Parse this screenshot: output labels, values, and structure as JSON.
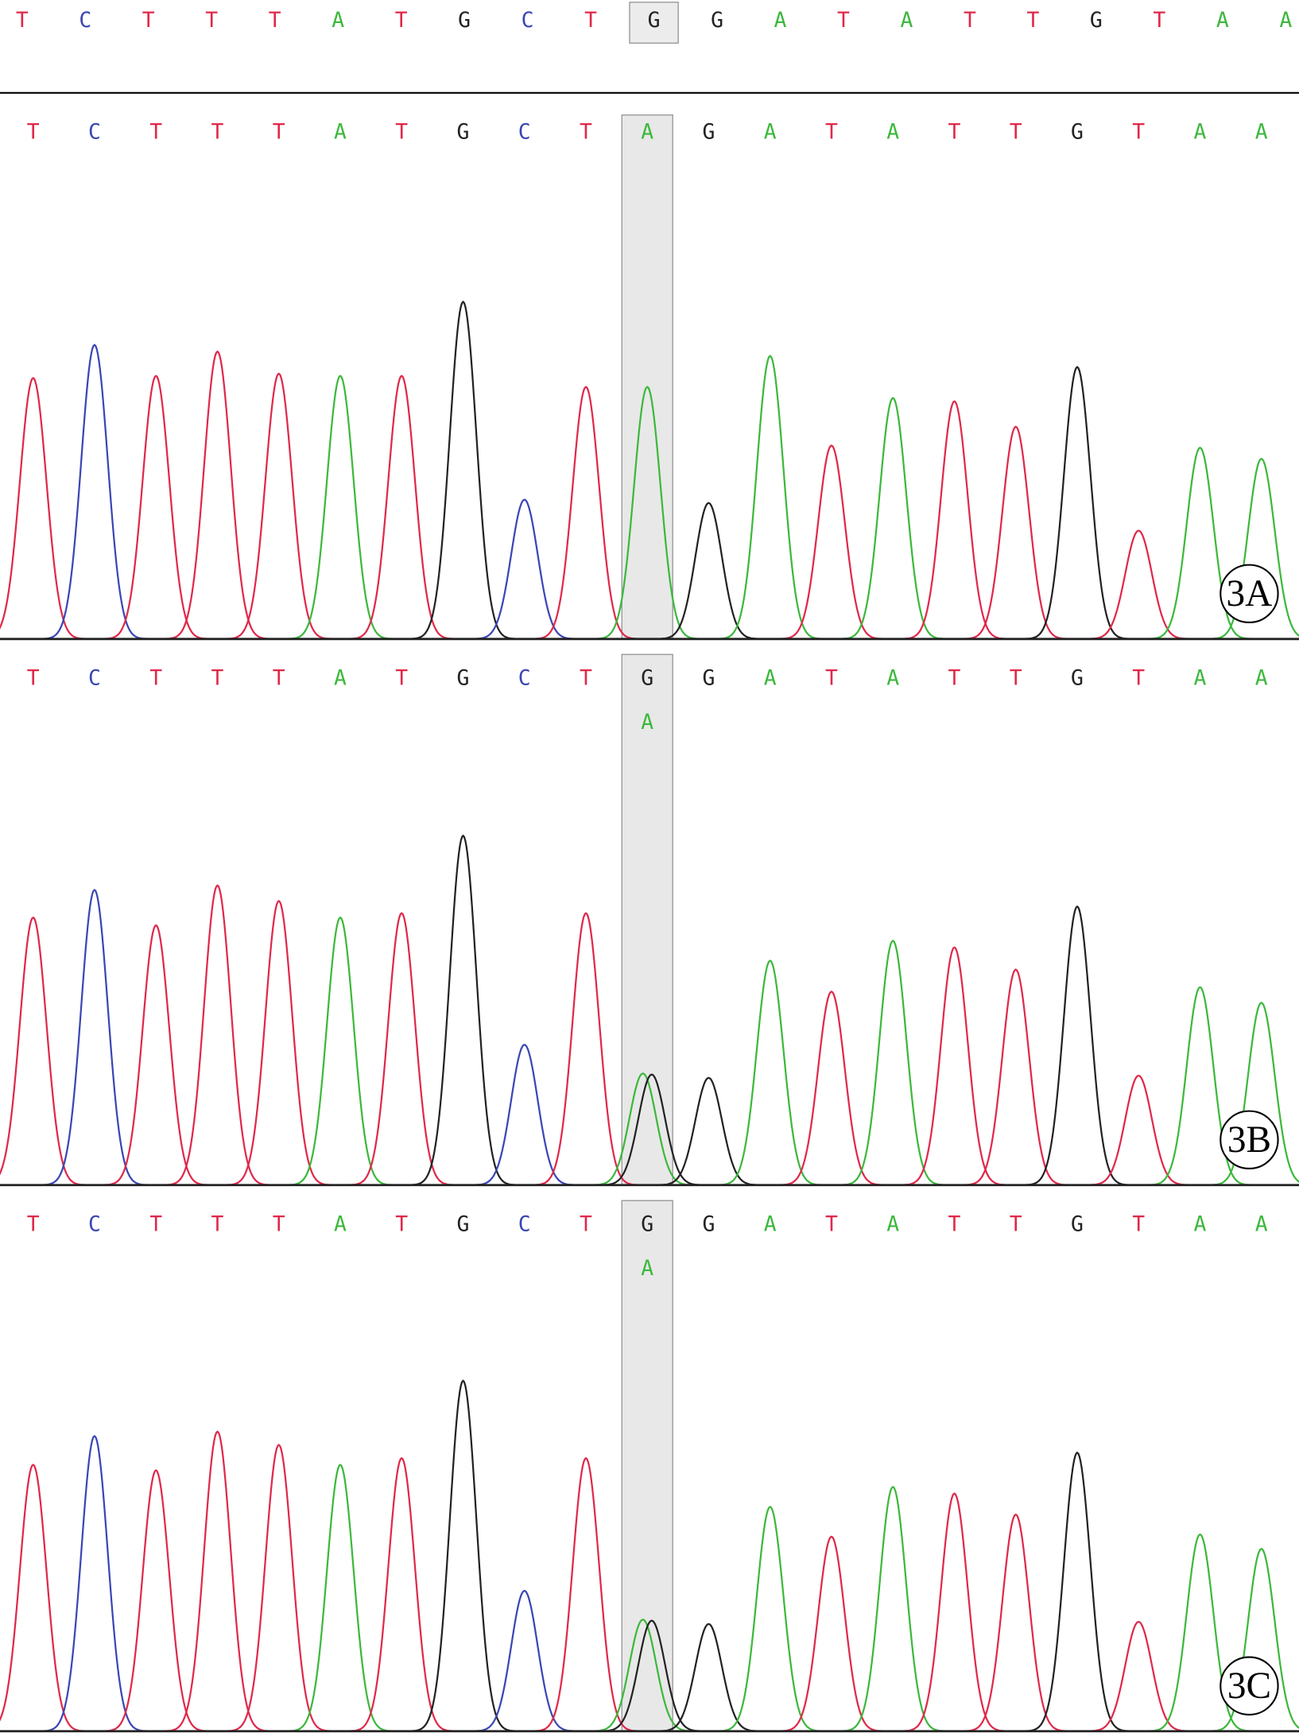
{
  "colors": {
    "A": "#3cb83c",
    "C": "#3a46b4",
    "G": "#222222",
    "T": "#e0284a"
  },
  "highlight": 10,
  "reference": {
    "bases": [
      "T",
      "C",
      "T",
      "T",
      "T",
      "A",
      "T",
      "G",
      "C",
      "T",
      "G",
      "G",
      "A",
      "T",
      "A",
      "T",
      "T",
      "G",
      "T",
      "A",
      "A"
    ]
  },
  "panels": [
    {
      "label": "3A",
      "calls": [
        "T",
        "C",
        "T",
        "T",
        "T",
        "A",
        "T",
        "G",
        "C",
        "T",
        "A",
        "G",
        "A",
        "T",
        "A",
        "T",
        "T",
        "G",
        "T",
        "A",
        "A"
      ],
      "peaks": [
        [
          {
            "base": "T",
            "height": 236
          }
        ],
        [
          {
            "base": "C",
            "height": 266
          }
        ],
        [
          {
            "base": "T",
            "height": 238
          }
        ],
        [
          {
            "base": "T",
            "height": 260
          }
        ],
        [
          {
            "base": "T",
            "height": 240
          }
        ],
        [
          {
            "base": "A",
            "height": 238
          }
        ],
        [
          {
            "base": "T",
            "height": 238
          }
        ],
        [
          {
            "base": "G",
            "height": 305
          }
        ],
        [
          {
            "base": "C",
            "height": 126
          }
        ],
        [
          {
            "base": "T",
            "height": 228
          }
        ],
        [
          {
            "base": "A",
            "height": 228
          }
        ],
        [
          {
            "base": "G",
            "height": 123
          }
        ],
        [
          {
            "base": "A",
            "height": 256
          }
        ],
        [
          {
            "base": "T",
            "height": 175
          }
        ],
        [
          {
            "base": "A",
            "height": 218
          }
        ],
        [
          {
            "base": "T",
            "height": 215
          }
        ],
        [
          {
            "base": "T",
            "height": 192
          }
        ],
        [
          {
            "base": "G",
            "height": 246
          }
        ],
        [
          {
            "base": "T",
            "height": 98
          }
        ],
        [
          {
            "base": "A",
            "height": 173
          }
        ],
        [
          {
            "base": "A",
            "height": 163
          }
        ]
      ]
    },
    {
      "label": "3B",
      "calls": [
        "T",
        "C",
        "T",
        "T",
        "T",
        "A",
        "T",
        "G",
        "C",
        "T",
        "G",
        "G",
        "A",
        "T",
        "A",
        "T",
        "T",
        "G",
        "T",
        "A",
        "A"
      ],
      "secondary_call": "A",
      "peaks": [
        [
          {
            "base": "T",
            "height": 242
          }
        ],
        [
          {
            "base": "C",
            "height": 267
          }
        ],
        [
          {
            "base": "T",
            "height": 235
          }
        ],
        [
          {
            "base": "T",
            "height": 271
          }
        ],
        [
          {
            "base": "T",
            "height": 257
          }
        ],
        [
          {
            "base": "A",
            "height": 242
          }
        ],
        [
          {
            "base": "T",
            "height": 246
          }
        ],
        [
          {
            "base": "G",
            "height": 316
          }
        ],
        [
          {
            "base": "C",
            "height": 127
          }
        ],
        [
          {
            "base": "T",
            "height": 246
          }
        ],
        [
          {
            "base": "A",
            "height": 101
          },
          {
            "base": "G",
            "height": 100
          }
        ],
        [
          {
            "base": "G",
            "height": 97
          }
        ],
        [
          {
            "base": "A",
            "height": 203
          }
        ],
        [
          {
            "base": "T",
            "height": 175
          }
        ],
        [
          {
            "base": "A",
            "height": 221
          }
        ],
        [
          {
            "base": "T",
            "height": 215
          }
        ],
        [
          {
            "base": "T",
            "height": 195
          }
        ],
        [
          {
            "base": "G",
            "height": 252
          }
        ],
        [
          {
            "base": "T",
            "height": 99
          }
        ],
        [
          {
            "base": "A",
            "height": 179
          }
        ],
        [
          {
            "base": "A",
            "height": 165
          }
        ]
      ]
    },
    {
      "label": "3C",
      "calls": [
        "T",
        "C",
        "T",
        "T",
        "T",
        "A",
        "T",
        "G",
        "C",
        "T",
        "G",
        "G",
        "A",
        "T",
        "A",
        "T",
        "T",
        "G",
        "T",
        "A",
        "A"
      ],
      "secondary_call": "A",
      "peaks": [
        [
          {
            "base": "T",
            "height": 241
          }
        ],
        [
          {
            "base": "C",
            "height": 267
          }
        ],
        [
          {
            "base": "T",
            "height": 236
          }
        ],
        [
          {
            "base": "T",
            "height": 271
          }
        ],
        [
          {
            "base": "T",
            "height": 259
          }
        ],
        [
          {
            "base": "A",
            "height": 241
          }
        ],
        [
          {
            "base": "T",
            "height": 247
          }
        ],
        [
          {
            "base": "G",
            "height": 317
          }
        ],
        [
          {
            "base": "C",
            "height": 127
          }
        ],
        [
          {
            "base": "T",
            "height": 247
          }
        ],
        [
          {
            "base": "A",
            "height": 101
          },
          {
            "base": "G",
            "height": 100
          }
        ],
        [
          {
            "base": "G",
            "height": 97
          }
        ],
        [
          {
            "base": "A",
            "height": 203
          }
        ],
        [
          {
            "base": "T",
            "height": 176
          }
        ],
        [
          {
            "base": "A",
            "height": 221
          }
        ],
        [
          {
            "base": "T",
            "height": 215
          }
        ],
        [
          {
            "base": "T",
            "height": 196
          }
        ],
        [
          {
            "base": "G",
            "height": 252
          }
        ],
        [
          {
            "base": "T",
            "height": 99
          }
        ],
        [
          {
            "base": "A",
            "height": 178
          }
        ],
        [
          {
            "base": "A",
            "height": 165
          }
        ]
      ]
    }
  ]
}
